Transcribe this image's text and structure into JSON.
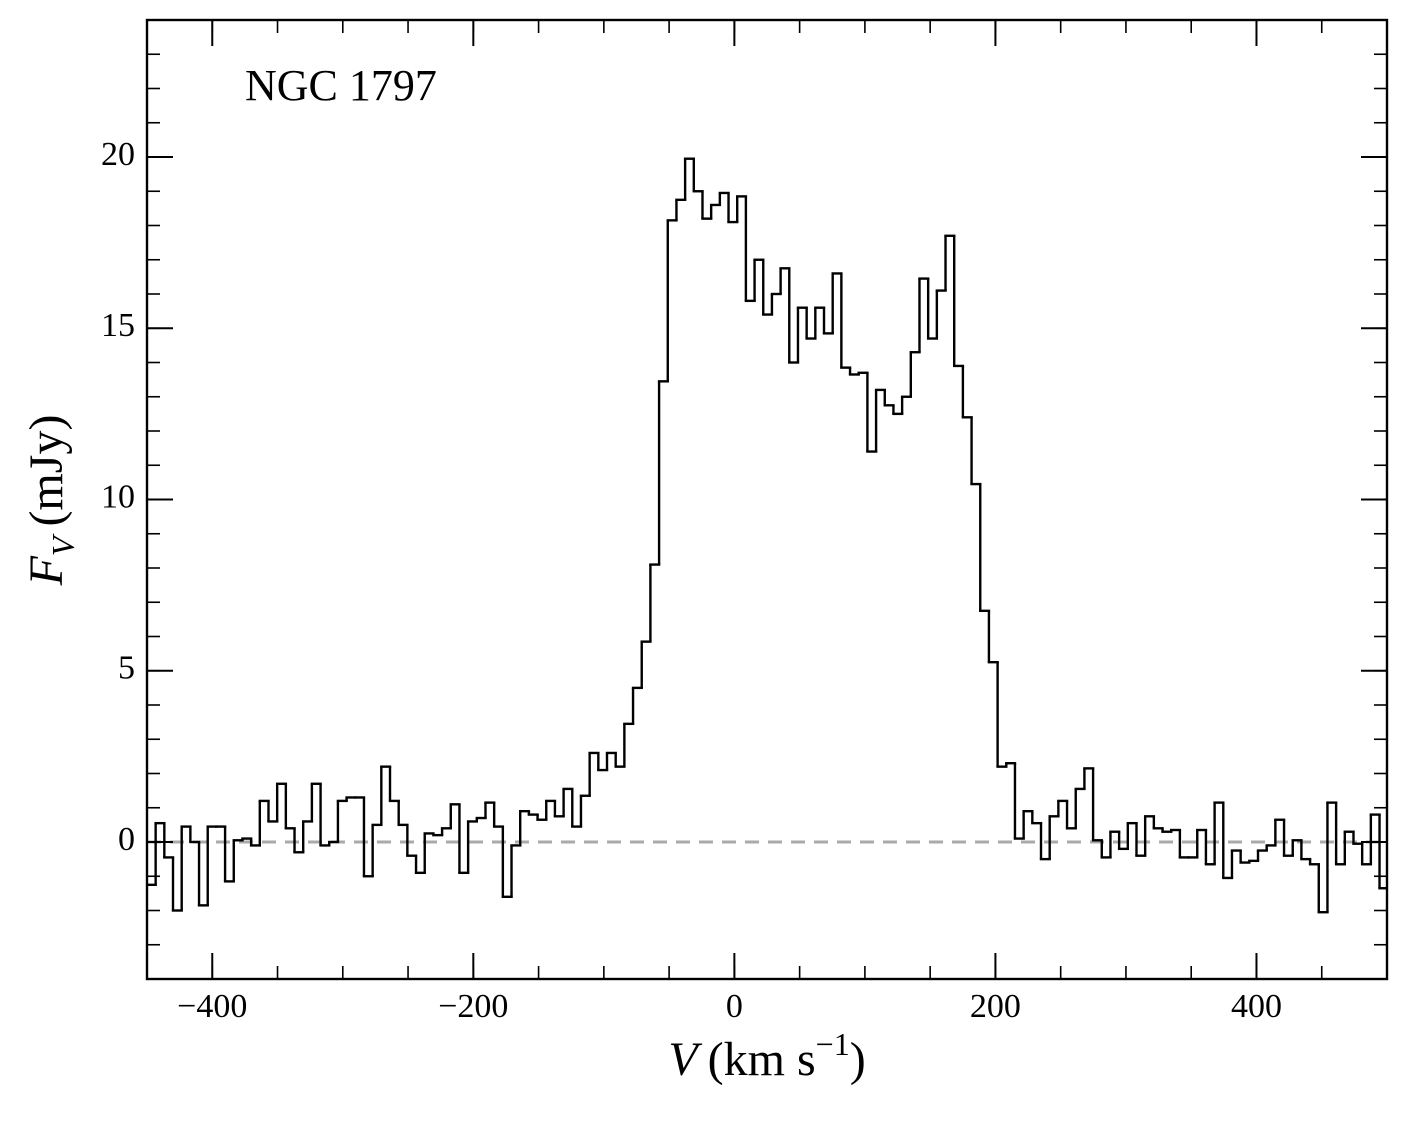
{
  "chart_data": {
    "type": "step",
    "annotation": "NGC 1797",
    "xlabel": {
      "symbol": "V",
      "unit": "(km s",
      "superscript": "−1",
      "close": ")"
    },
    "ylabel": {
      "symbol": "F",
      "subscript": "V",
      "unit": "(mJy)"
    },
    "xlim": [
      -450,
      500
    ],
    "ylim": [
      -4,
      24
    ],
    "xticks": [
      {
        "value": -400,
        "label": "−400"
      },
      {
        "value": -200,
        "label": "−200"
      },
      0,
      200,
      400
    ],
    "yticks": [
      0,
      5,
      10,
      15,
      20
    ],
    "color": "#000000",
    "hline": {
      "y": 0,
      "color": "#aaaaaa",
      "style": "dashed"
    },
    "x": [
      -446.7,
      -440.05,
      -433.4,
      -426.75,
      -420.1,
      -413.45,
      -406.8,
      -400.15,
      -393.5,
      -386.85,
      -380.2,
      -373.55,
      -366.9,
      -360.25,
      -353.6,
      -346.95,
      -340.3,
      -333.65,
      -327,
      -320.35,
      -313.7,
      -307.05,
      -300.4,
      -293.75,
      -287.1,
      -280.45,
      -273.8,
      -267.15,
      -260.5,
      -253.85,
      -247.2,
      -240.55,
      -233.9,
      -227.25,
      -220.6,
      -213.95,
      -207.3,
      -200.65,
      -194,
      -187.35,
      -180.7,
      -174.05,
      -167.4,
      -160.75,
      -154.1,
      -147.45,
      -140.8,
      -134.15,
      -127.5,
      -120.85,
      -114.2,
      -107.55,
      -100.9,
      -94.25,
      -87.6,
      -80.95,
      -74.3,
      -67.65,
      -61,
      -54.35,
      -47.7,
      -41.05,
      -34.4,
      -27.75,
      -21.1,
      -14.45,
      -7.8,
      -1.15,
      5.5,
      12.15,
      18.8,
      25.45,
      32.1,
      38.75,
      45.4,
      52.05,
      58.7,
      65.35,
      72,
      78.65,
      85.3,
      91.95,
      98.6,
      105.25,
      111.9,
      118.55,
      125.2,
      131.85,
      138.5,
      145.15,
      151.8,
      158.45,
      165.1,
      171.75,
      178.4,
      185.05,
      191.7,
      198.35,
      205,
      211.65,
      218.3,
      224.95,
      231.6,
      238.25,
      244.9,
      251.55,
      258.2,
      264.85,
      271.5,
      278.15,
      284.8,
      291.45,
      298.1,
      304.75,
      311.4,
      318.05,
      324.7,
      331.35,
      338,
      344.65,
      351.3,
      357.95,
      364.6,
      371.25,
      377.9,
      384.55,
      391.2,
      397.85,
      404.5,
      411.15,
      417.8,
      424.45,
      431.1,
      437.75,
      444.4,
      451.05,
      457.7,
      464.35,
      471,
      477.65,
      484.3,
      490.95,
      497.6
    ],
    "values": [
      -1.25,
      0.55,
      -0.45,
      -2.0,
      0.45,
      0.0,
      -1.85,
      0.45,
      0.45,
      -1.15,
      0.05,
      0.1,
      -0.1,
      1.2,
      0.6,
      1.7,
      0.4,
      -0.3,
      0.6,
      1.7,
      -0.1,
      0.0,
      1.2,
      1.3,
      1.3,
      -1.0,
      0.5,
      2.2,
      1.2,
      0.5,
      -0.4,
      -0.9,
      0.25,
      0.2,
      0.4,
      1.1,
      -0.9,
      0.6,
      0.7,
      1.15,
      0.45,
      -1.6,
      -0.1,
      0.9,
      0.8,
      0.65,
      1.2,
      0.75,
      1.55,
      0.45,
      1.35,
      2.6,
      2.1,
      2.6,
      2.2,
      3.45,
      4.5,
      5.85,
      8.1,
      13.45,
      18.15,
      18.75,
      19.95,
      19.0,
      18.2,
      18.6,
      18.95,
      18.1,
      18.85,
      15.8,
      17.0,
      15.4,
      16.0,
      16.75,
      14.0,
      15.6,
      14.7,
      15.6,
      14.85,
      16.6,
      13.85,
      13.65,
      13.7,
      11.4,
      13.2,
      12.75,
      12.5,
      13.0,
      14.3,
      16.45,
      14.7,
      16.1,
      17.7,
      13.9,
      12.4,
      10.45,
      6.75,
      5.25,
      2.2,
      2.3,
      0.1,
      0.9,
      0.55,
      -0.5,
      0.75,
      1.2,
      0.4,
      1.55,
      2.15,
      0.05,
      -0.45,
      0.3,
      -0.2,
      0.55,
      -0.4,
      0.75,
      0.4,
      0.3,
      0.35,
      -0.45,
      -0.45,
      0.35,
      -0.65,
      1.15,
      -1.05,
      -0.25,
      -0.6,
      -0.55,
      -0.25,
      -0.1,
      0.65,
      -0.4,
      0.05,
      -0.5,
      -0.65,
      -2.05,
      1.15,
      -0.65,
      0.3,
      -0.05,
      -0.65,
      0.8,
      -1.35
    ]
  }
}
